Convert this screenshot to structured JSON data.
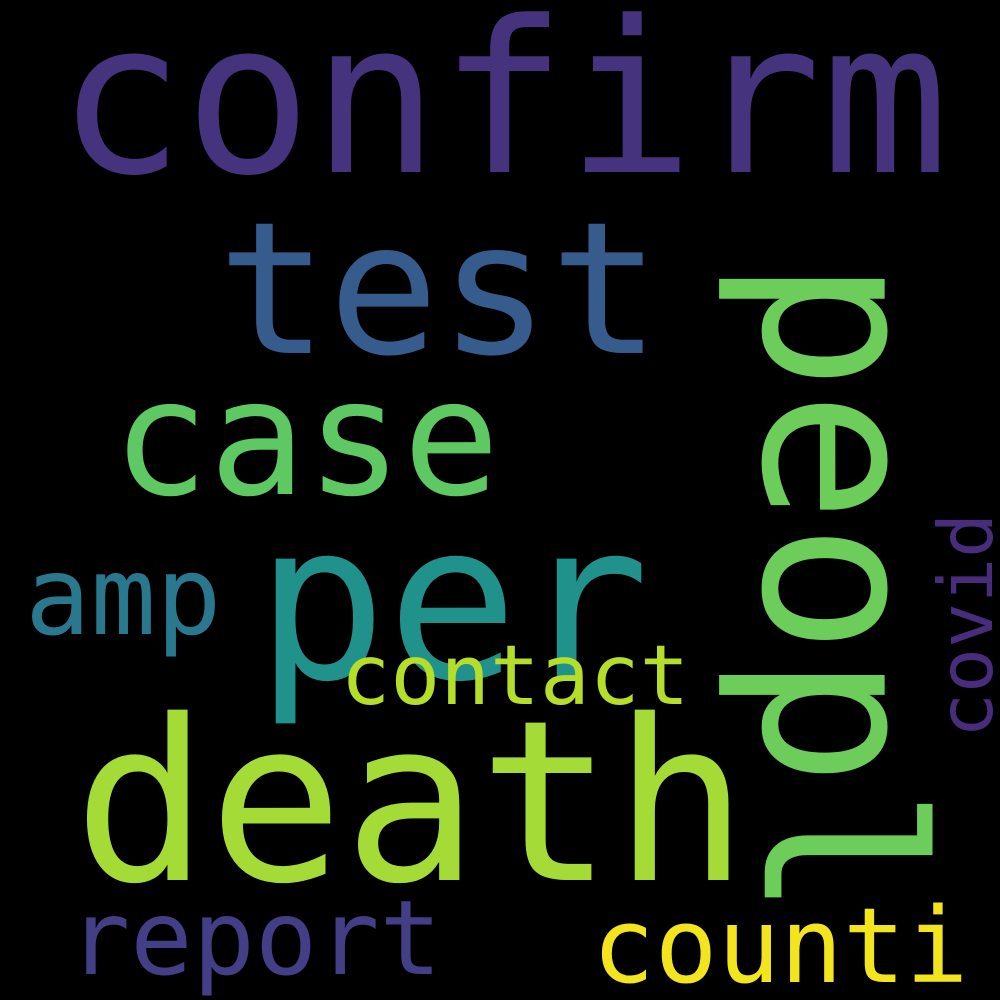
{
  "wordcloud": {
    "background": "#000000",
    "words": [
      {
        "id": "confirm",
        "text": "confirm",
        "color": "#46337e",
        "vertical": false
      },
      {
        "id": "test",
        "text": "test",
        "color": "#365c8d",
        "vertical": false
      },
      {
        "id": "peopl",
        "text": "peopl",
        "color": "#6ccd5a",
        "vertical": true
      },
      {
        "id": "case",
        "text": "case",
        "color": "#5ec962",
        "vertical": false
      },
      {
        "id": "per",
        "text": "per",
        "color": "#21918c",
        "vertical": false
      },
      {
        "id": "amp",
        "text": "amp",
        "color": "#2a788e",
        "vertical": false
      },
      {
        "id": "contact",
        "text": "contact",
        "color": "#b5de2b",
        "vertical": false
      },
      {
        "id": "covid",
        "text": "covid",
        "color": "#472d7b",
        "vertical": true
      },
      {
        "id": "death",
        "text": "death",
        "color": "#a5db36",
        "vertical": false
      },
      {
        "id": "report",
        "text": "report",
        "color": "#433e85",
        "vertical": false
      },
      {
        "id": "counti",
        "text": "counti",
        "color": "#f2e51d",
        "vertical": false
      }
    ]
  }
}
